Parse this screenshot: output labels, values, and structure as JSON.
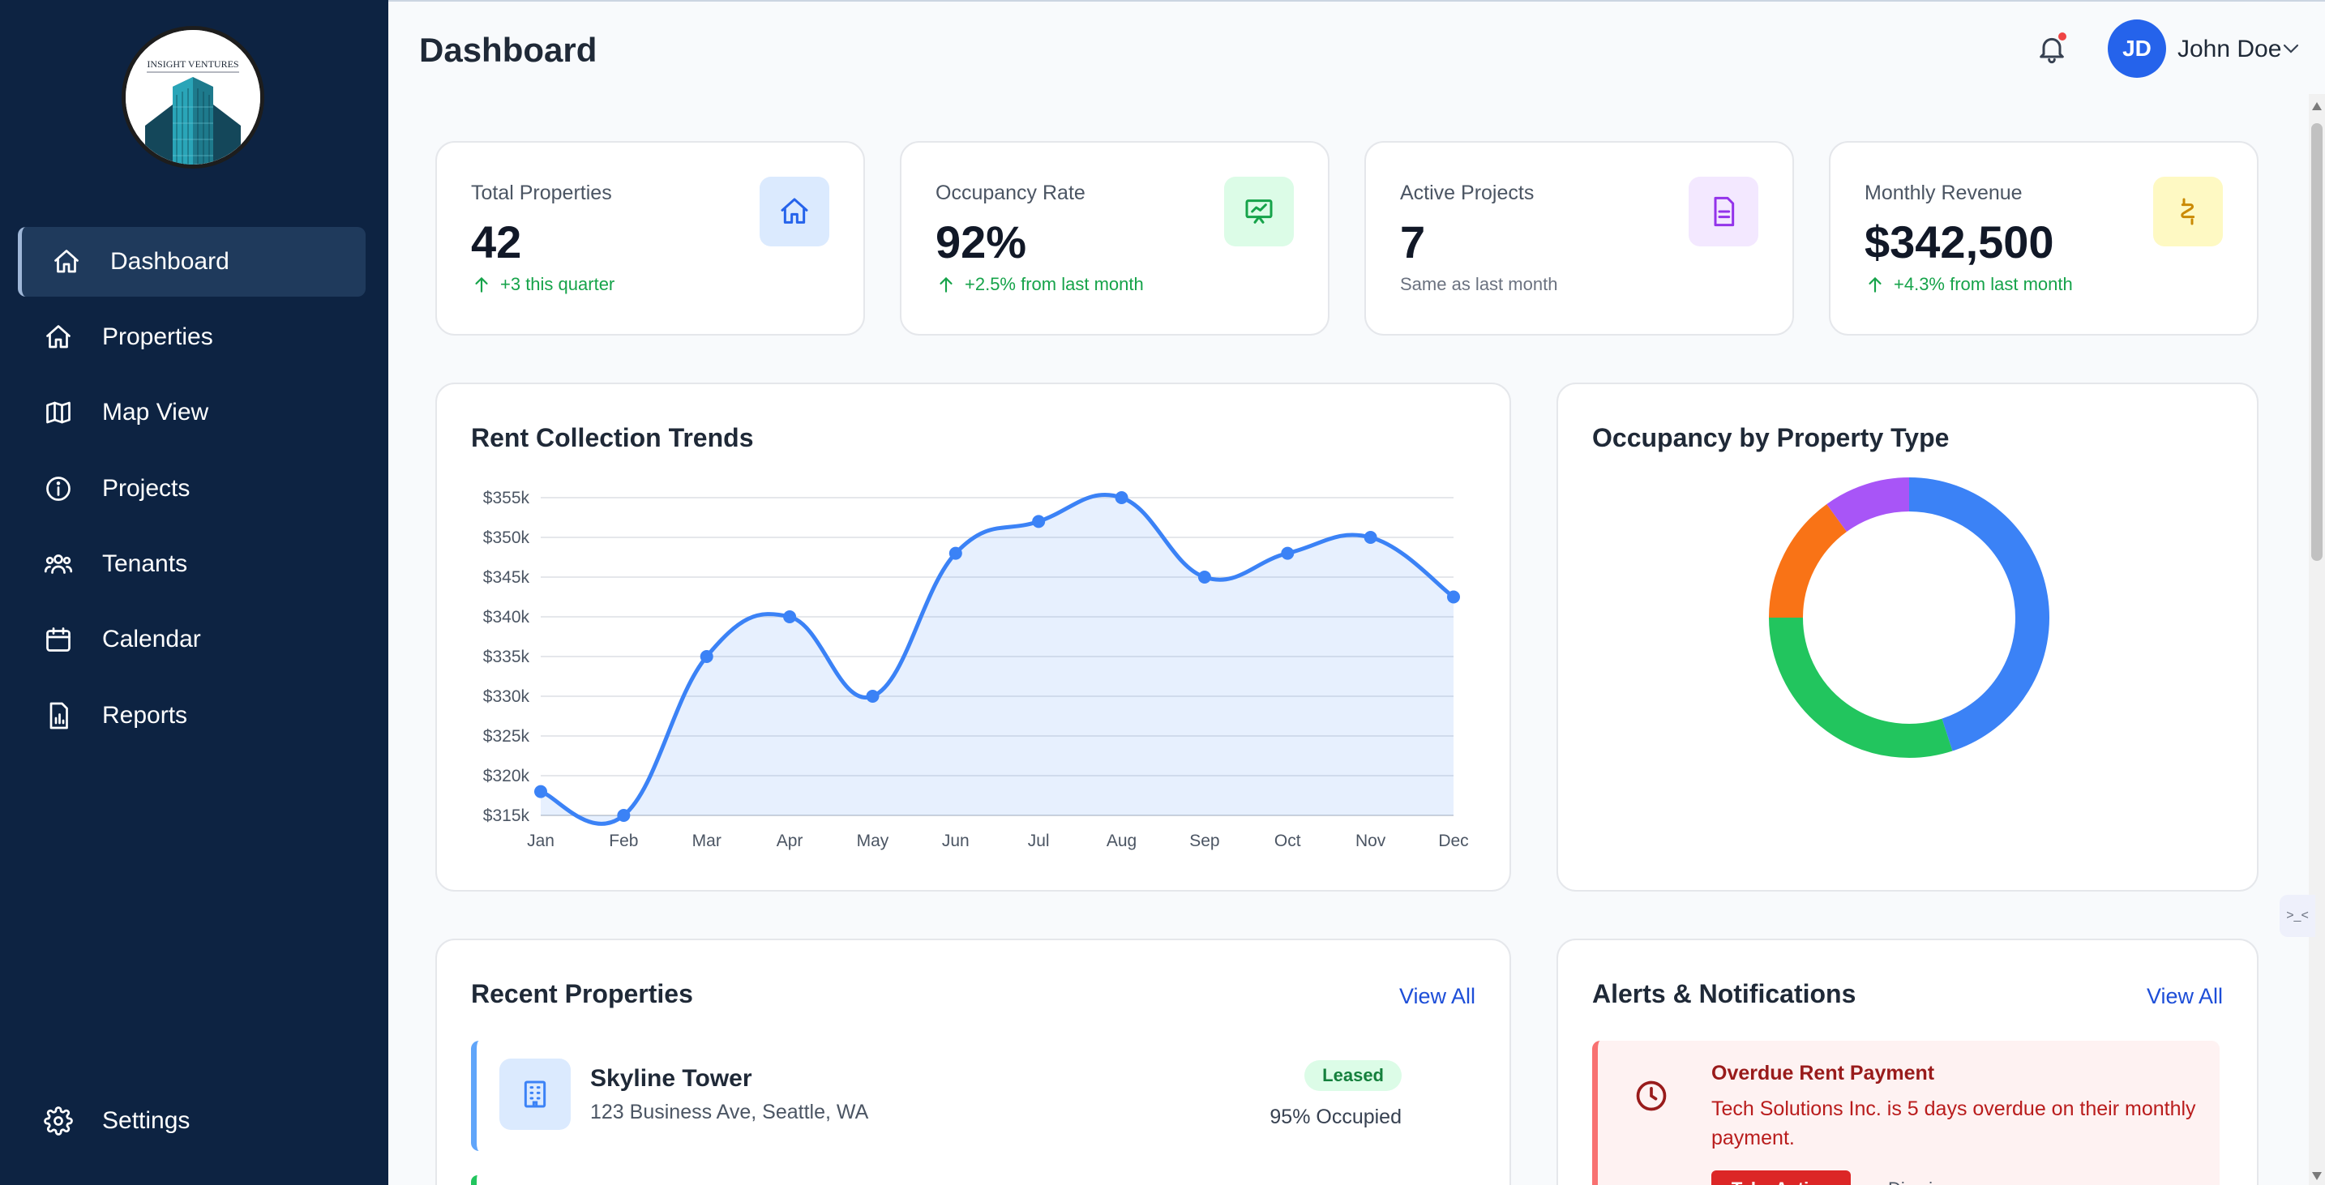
{
  "brand": {
    "logo_text": "INSIGHT VENTURES"
  },
  "sidebar": {
    "items": [
      {
        "label": "Dashboard",
        "icon": "home-icon"
      },
      {
        "label": "Properties",
        "icon": "home-icon"
      },
      {
        "label": "Map View",
        "icon": "map-icon"
      },
      {
        "label": "Projects",
        "icon": "info-icon"
      },
      {
        "label": "Tenants",
        "icon": "users-icon"
      },
      {
        "label": "Calendar",
        "icon": "calendar-icon"
      },
      {
        "label": "Reports",
        "icon": "report-icon"
      }
    ],
    "settings_label": "Settings",
    "active": "Dashboard"
  },
  "header": {
    "title": "Dashboard",
    "user_initials": "JD",
    "user_name": "John Doe",
    "has_notification": true
  },
  "stats": [
    {
      "label": "Total Properties",
      "value": "42",
      "sub": "+3 this quarter",
      "trend": "up",
      "icon": "home-icon",
      "icon_bg": "#dbeafe",
      "icon_color": "#2563eb"
    },
    {
      "label": "Occupancy Rate",
      "value": "92%",
      "sub": "+2.5% from last month",
      "trend": "up",
      "icon": "presentation-chart-icon",
      "icon_bg": "#dcfce7",
      "icon_color": "#16a34a"
    },
    {
      "label": "Active Projects",
      "value": "7",
      "sub": "Same as last month",
      "trend": "none",
      "icon": "document-icon",
      "icon_bg": "#f3e8ff",
      "icon_color": "#9333ea"
    },
    {
      "label": "Monthly Revenue",
      "value": "$342,500",
      "sub": "+4.3% from last month",
      "trend": "up",
      "icon": "currency-icon",
      "icon_bg": "#fef9c3",
      "icon_color": "#ca8a04"
    }
  ],
  "rent_chart": {
    "title": "Rent Collection Trends"
  },
  "occupancy_chart": {
    "title": "Occupancy by Property Type"
  },
  "chart_data": [
    {
      "type": "area",
      "title": "Rent Collection Trends",
      "categories": [
        "Jan",
        "Feb",
        "Mar",
        "Apr",
        "May",
        "Jun",
        "Jul",
        "Aug",
        "Sep",
        "Oct",
        "Nov",
        "Dec"
      ],
      "values": [
        318000,
        315000,
        335000,
        340000,
        330000,
        348000,
        352000,
        355000,
        345000,
        348000,
        350000,
        342500
      ],
      "yticks": [
        "$315k",
        "$320k",
        "$325k",
        "$330k",
        "$335k",
        "$340k",
        "$345k",
        "$350k",
        "$355k"
      ],
      "ylim": [
        315000,
        355000
      ],
      "grid": true,
      "color": "#3b82f6"
    },
    {
      "type": "pie",
      "title": "Occupancy by Property Type",
      "values": [
        45,
        30,
        15,
        10
      ],
      "colors": [
        "#3b82f6",
        "#22c55e",
        "#f97316",
        "#a855f7"
      ],
      "donut": true
    }
  ],
  "recent_properties": {
    "title": "Recent Properties",
    "view_all": "View All",
    "items": [
      {
        "name": "Skyline Tower",
        "address": "123 Business Ave, Seattle, WA",
        "status": "Leased",
        "occupancy": "95% Occupied"
      }
    ]
  },
  "alerts": {
    "title": "Alerts & Notifications",
    "view_all": "View All",
    "items": [
      {
        "title": "Overdue Rent Payment",
        "text": "Tech Solutions Inc. is 5 days overdue on their monthly payment.",
        "action": "Take Action",
        "dismiss": "Dismiss"
      }
    ]
  },
  "floating_tool": {
    "label": ">_<"
  }
}
